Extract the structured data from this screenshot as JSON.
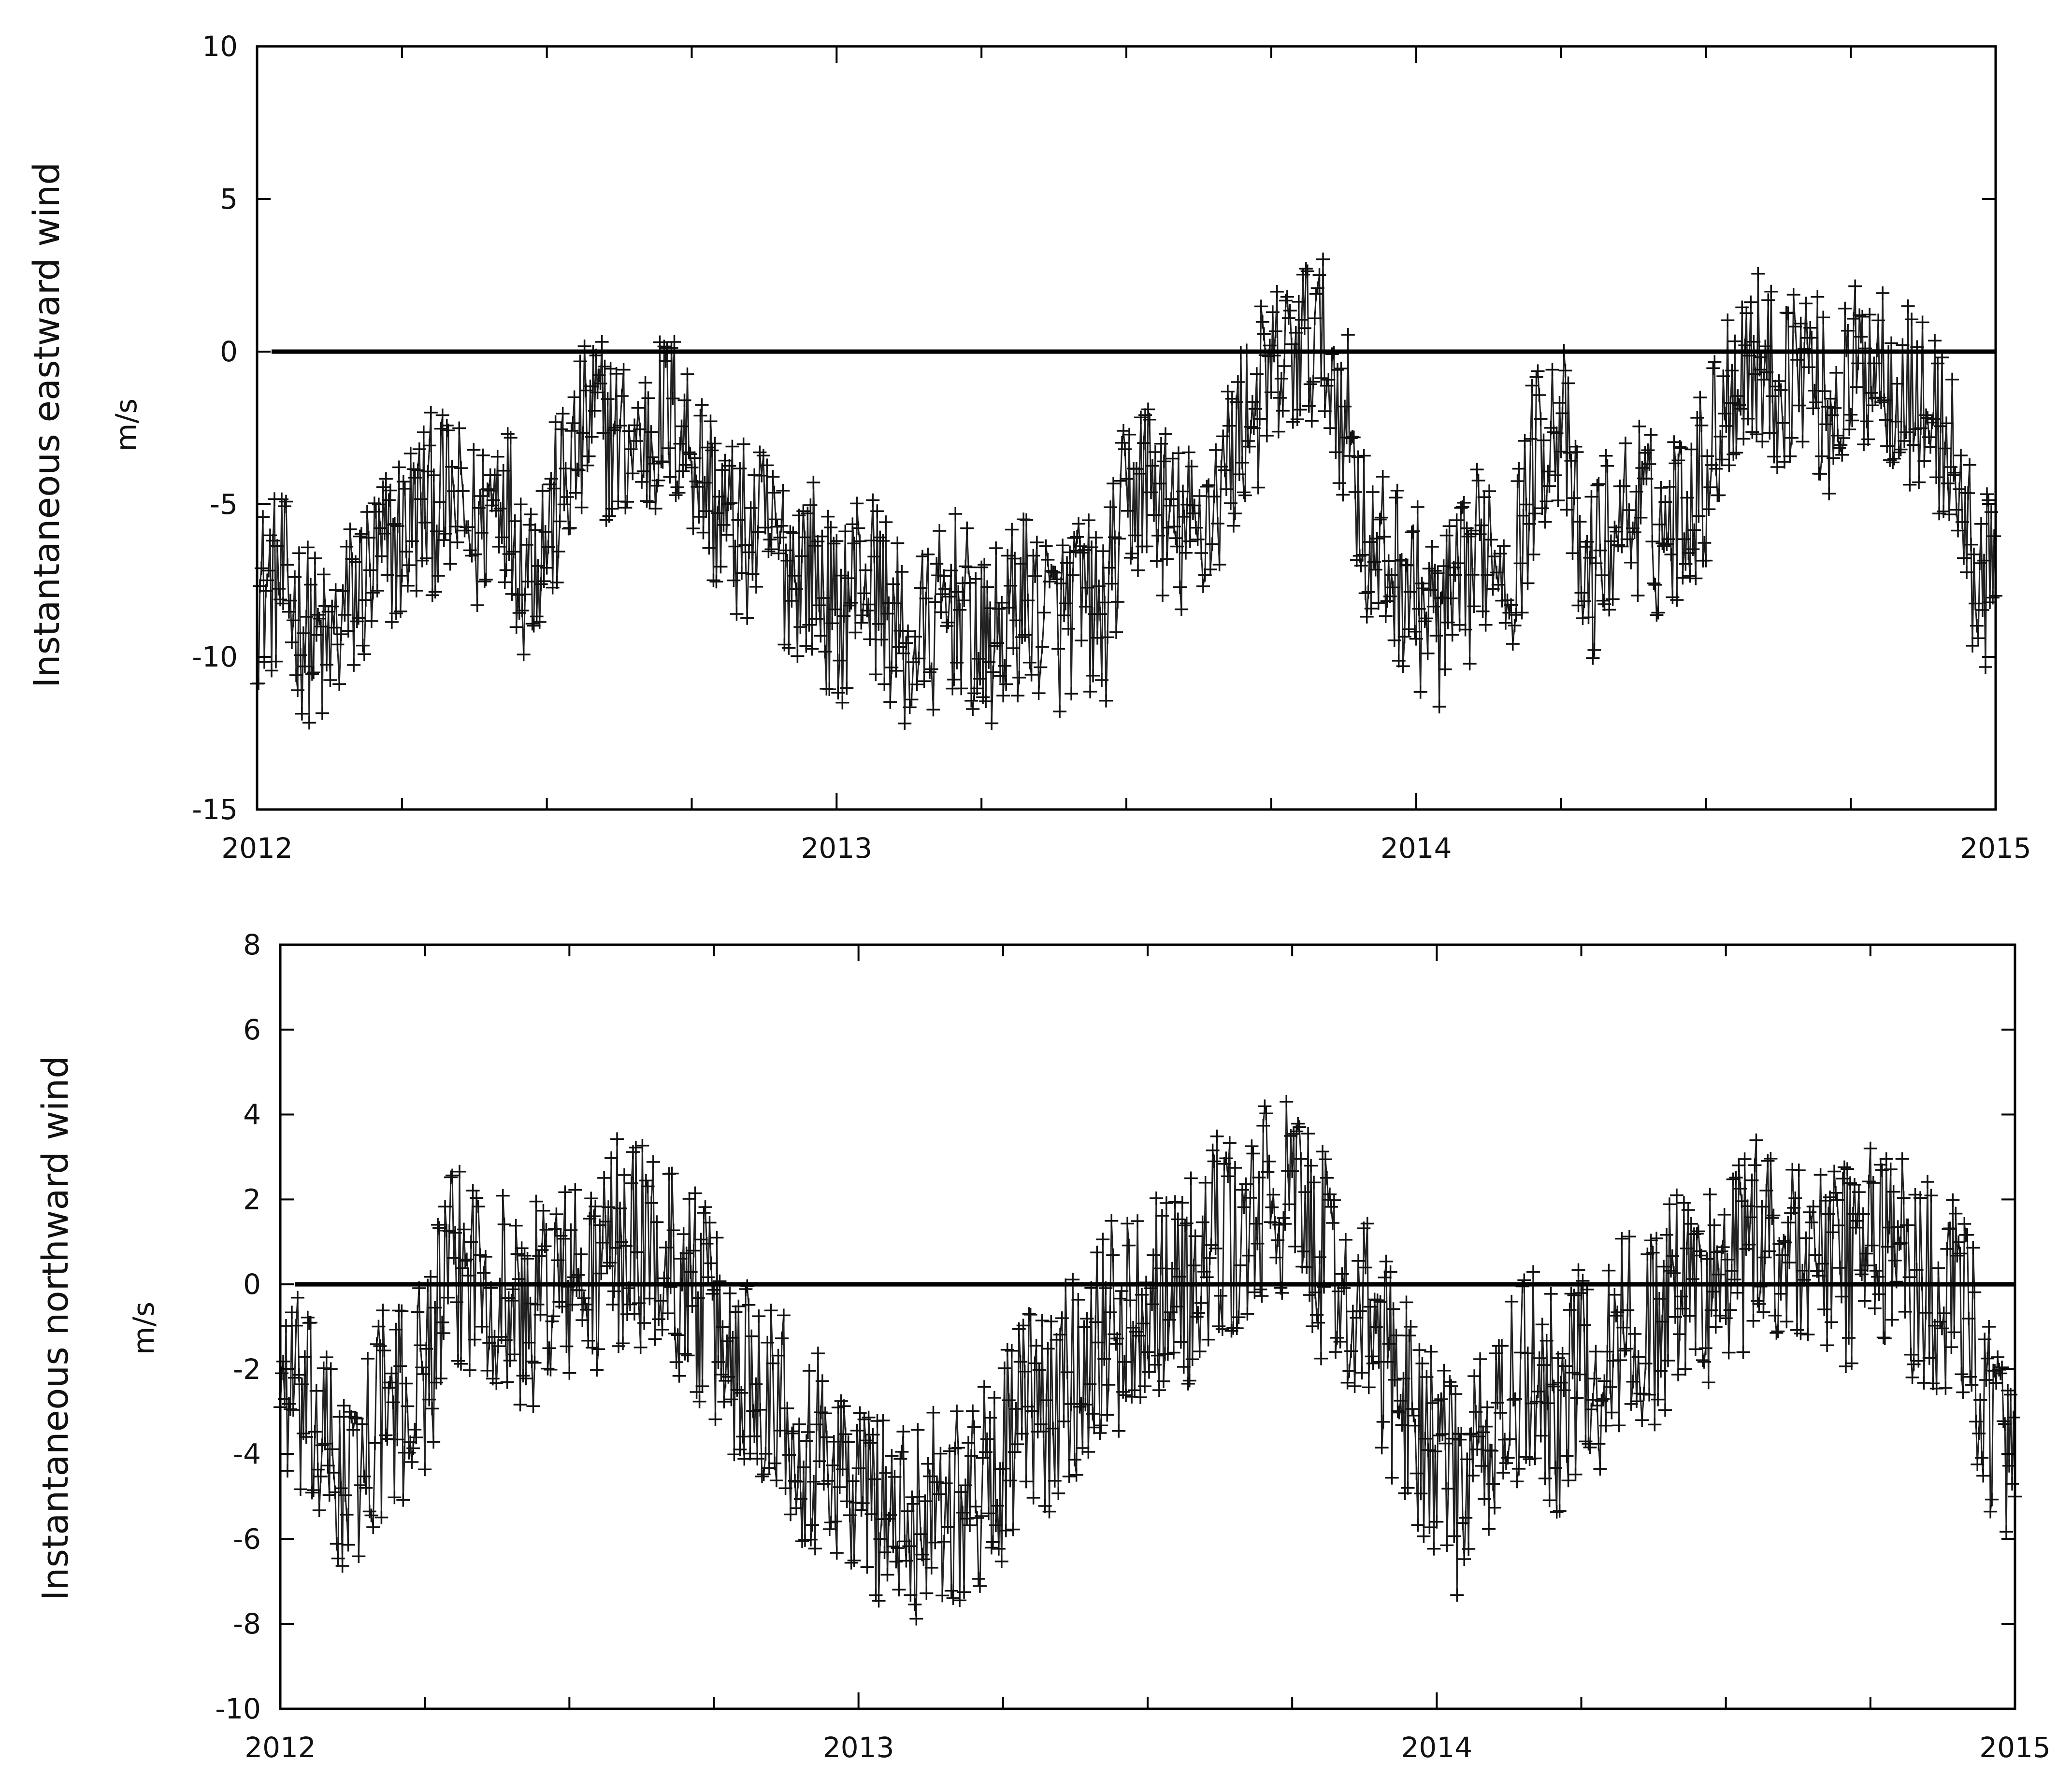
{
  "chart_data": [
    {
      "type": "scatter",
      "title": "",
      "ylabel": "Instantaneous eastward wind",
      "yunit": "m/s",
      "xlabel": "",
      "xlim": [
        2012,
        2015
      ],
      "ylim": [
        -15,
        10
      ],
      "xticks": [
        2012,
        2013,
        2014,
        2015
      ],
      "xtick_labels": [
        "2012",
        "2013",
        "2014",
        "2015"
      ],
      "yticks": [
        -15,
        -10,
        -5,
        0,
        5,
        10
      ],
      "ytick_labels": [
        "-15",
        "-10",
        "-5",
        "0",
        "5",
        "10"
      ],
      "zero_line": 0,
      "marker": "plus",
      "color": "#000000",
      "grid": false,
      "series": [
        {
          "x": [
            2012.0,
            2012.04,
            2012.08,
            2012.12,
            2012.17,
            2012.21,
            2012.25,
            2012.29,
            2012.33,
            2012.38,
            2012.42,
            2012.46,
            2012.5,
            2012.54,
            2012.58,
            2012.62,
            2012.67,
            2012.71,
            2012.75,
            2012.79,
            2012.83,
            2012.88,
            2012.92,
            2012.96,
            2013.0,
            2013.04,
            2013.08,
            2013.12,
            2013.17,
            2013.21,
            2013.25,
            2013.29,
            2013.33,
            2013.38,
            2013.42,
            2013.46,
            2013.5,
            2013.54,
            2013.58,
            2013.62,
            2013.67,
            2013.71,
            2013.75,
            2013.79,
            2013.83,
            2013.88,
            2013.92,
            2013.96,
            2014.0,
            2014.04,
            2014.08,
            2014.12,
            2014.17,
            2014.21,
            2014.25,
            2014.29,
            2014.33,
            2014.38,
            2014.42,
            2014.46,
            2014.5,
            2014.54,
            2014.58,
            2014.62,
            2014.67,
            2014.71,
            2014.75,
            2014.79,
            2014.83,
            2014.88,
            2014.92,
            2014.96,
            2015.0
          ],
          "y": [
            -8,
            -7.5,
            -9,
            -10,
            -8,
            -7,
            -6,
            -5,
            -5,
            -6,
            -4,
            -7,
            -6,
            -4,
            -2,
            -3,
            -3,
            -2,
            -3,
            -5,
            -6,
            -6,
            -7,
            -7,
            -9,
            -7,
            -8,
            -10,
            -9,
            -8,
            -10,
            -9,
            -8,
            -9,
            -8,
            -9,
            -5,
            -4,
            -6,
            -6,
            -4,
            -2,
            -1,
            0,
            0.5,
            -2,
            -7,
            -7,
            -8,
            -9,
            -8,
            -6,
            -7,
            -3,
            -2,
            -8,
            -6,
            -5,
            -6,
            -5,
            -4,
            -1,
            0,
            -1,
            0,
            -2,
            -1,
            0,
            -1,
            -2,
            -3,
            -7,
            -8
          ],
          "spread": [
            3,
            3,
            3,
            3,
            3,
            3,
            3,
            3,
            3,
            3,
            3,
            3,
            3,
            3,
            3,
            3,
            3,
            3,
            3,
            3,
            3,
            3,
            3,
            3,
            3,
            3,
            3,
            3,
            3,
            3,
            3,
            3,
            3,
            3,
            3,
            3,
            3,
            3,
            3,
            3,
            3,
            3,
            3,
            3,
            3,
            3,
            3,
            3,
            3,
            3,
            3,
            3,
            3,
            3,
            3,
            3,
            3,
            3,
            3,
            3,
            3,
            3,
            3,
            3,
            3,
            3,
            3,
            3,
            3,
            3,
            3,
            3,
            3
          ]
        }
      ]
    },
    {
      "type": "scatter",
      "title": "",
      "ylabel": "Instantaneous northward  wind",
      "yunit": "m/s",
      "xlabel": "",
      "xlim": [
        2012,
        2015
      ],
      "ylim": [
        -10,
        8
      ],
      "xticks": [
        2012,
        2013,
        2014,
        2015
      ],
      "xtick_labels": [
        "2012",
        "2013",
        "2014",
        "2015"
      ],
      "yticks": [
        -10,
        -8,
        -6,
        -4,
        -2,
        0,
        2,
        4,
        6,
        8
      ],
      "ytick_labels": [
        "-10",
        "-8",
        "-6",
        "-4",
        "-2",
        "0",
        "2",
        "4",
        "6",
        "8"
      ],
      "zero_line": 0,
      "marker": "plus",
      "color": "#000000",
      "grid": false,
      "series": [
        {
          "x": [
            2012.0,
            2012.04,
            2012.08,
            2012.12,
            2012.17,
            2012.21,
            2012.25,
            2012.29,
            2012.33,
            2012.38,
            2012.42,
            2012.46,
            2012.5,
            2012.54,
            2012.58,
            2012.62,
            2012.67,
            2012.71,
            2012.75,
            2012.79,
            2012.83,
            2012.88,
            2012.92,
            2012.96,
            2013.0,
            2013.04,
            2013.08,
            2013.12,
            2013.17,
            2013.21,
            2013.25,
            2013.29,
            2013.33,
            2013.38,
            2013.42,
            2013.46,
            2013.5,
            2013.54,
            2013.58,
            2013.62,
            2013.67,
            2013.71,
            2013.75,
            2013.79,
            2013.83,
            2013.88,
            2013.92,
            2013.96,
            2014.0,
            2014.04,
            2014.08,
            2014.12,
            2014.17,
            2014.21,
            2014.25,
            2014.29,
            2014.33,
            2014.38,
            2014.42,
            2014.46,
            2014.5,
            2014.54,
            2014.58,
            2014.62,
            2014.67,
            2014.71,
            2014.75,
            2014.79,
            2014.83,
            2014.88,
            2014.92,
            2014.96,
            2015.0
          ],
          "y": [
            -2,
            -3,
            -4,
            -5,
            -3,
            -3,
            -2,
            0,
            0.5,
            0,
            -1,
            0,
            0,
            0,
            1,
            1,
            0.5,
            0,
            -1,
            -2,
            -2,
            -3,
            -4,
            -4,
            -5,
            -5,
            -6,
            -5,
            -5,
            -5,
            -4,
            -3,
            -3,
            -2,
            -1,
            -1,
            0,
            0,
            0,
            1,
            1,
            2,
            2,
            1,
            0,
            -1,
            -2,
            -3,
            -4,
            -5,
            -4,
            -3,
            -2,
            -3,
            -2,
            -2,
            -1,
            -1,
            0,
            0,
            0,
            1,
            1,
            1,
            0.5,
            0.5,
            1,
            1,
            0,
            0,
            -1,
            -3,
            -5
          ],
          "spread": [
            2.5,
            2.5,
            2.5,
            2.5,
            2.5,
            2.5,
            2.5,
            2.5,
            2.5,
            2.5,
            2.5,
            2.5,
            2.5,
            2.5,
            2.5,
            2.5,
            2.5,
            2.5,
            2.5,
            2.5,
            2.5,
            2.5,
            2.5,
            2.5,
            2.5,
            2.5,
            2.5,
            2.5,
            2.5,
            2.5,
            2.5,
            2.5,
            2.5,
            2.5,
            2.5,
            2.5,
            2.5,
            2.5,
            2.5,
            2.5,
            2.5,
            2.5,
            2.5,
            2.5,
            2.5,
            2.5,
            2.5,
            2.5,
            2.5,
            2.5,
            2.5,
            2.5,
            2.5,
            2.5,
            2.5,
            2.5,
            2.5,
            2.5,
            2.5,
            2.5,
            2.5,
            2.5,
            2.5,
            2.5,
            2.5,
            2.5,
            2.5,
            2.5,
            2.5,
            2.5,
            2.5,
            2.5,
            2.5
          ]
        }
      ]
    }
  ]
}
